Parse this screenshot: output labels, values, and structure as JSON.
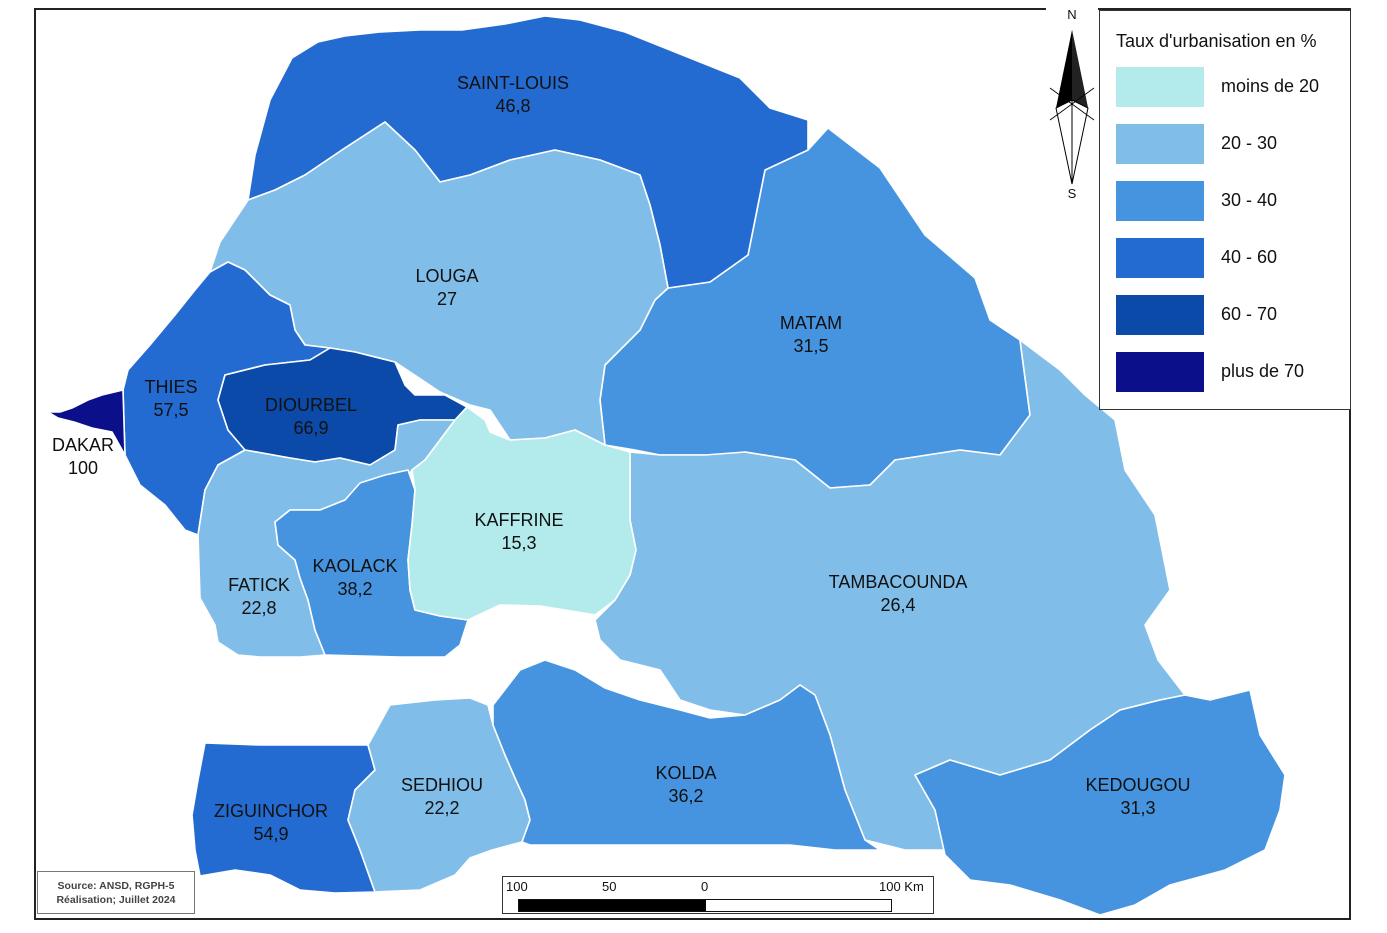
{
  "legend": {
    "title": "Taux d'urbanisation en %",
    "classes": [
      {
        "label": "moins de 20",
        "color": "#b3ebed"
      },
      {
        "label": "20 - 30",
        "color": "#80bde9"
      },
      {
        "label": "30 - 40",
        "color": "#4694e0"
      },
      {
        "label": "40 - 60",
        "color": "#236bd0"
      },
      {
        "label": "60 - 70",
        "color": "#0b4aa8"
      },
      {
        "label": "plus de 70",
        "color": "#0b0f8a"
      }
    ]
  },
  "regions": [
    {
      "name": "SAINT-LOUIS",
      "value": "46,8",
      "class": 3
    },
    {
      "name": "LOUGA",
      "value": "27",
      "class": 1
    },
    {
      "name": "MATAM",
      "value": "31,5",
      "class": 2
    },
    {
      "name": "THIES",
      "value": "57,5",
      "class": 3
    },
    {
      "name": "DIOURBEL",
      "value": "66,9",
      "class": 4
    },
    {
      "name": "DAKAR",
      "value": "100",
      "class": 5
    },
    {
      "name": "KAFFRINE",
      "value": "15,3",
      "class": 0
    },
    {
      "name": "FATICK",
      "value": "22,8",
      "class": 1
    },
    {
      "name": "KAOLACK",
      "value": "38,2",
      "class": 2
    },
    {
      "name": "TAMBACOUNDA",
      "value": "26,4",
      "class": 1
    },
    {
      "name": "SEDHIOU",
      "value": "22,2",
      "class": 1
    },
    {
      "name": "KOLDA",
      "value": "36,2",
      "class": 2
    },
    {
      "name": "ZIGUINCHOR",
      "value": "54,9",
      "class": 3
    },
    {
      "name": "KEDOUGOU",
      "value": "31,3",
      "class": 2
    }
  ],
  "north_arrow": {
    "north": "N",
    "south": "S"
  },
  "source": {
    "line1": "Source: ANSD, RGPH-5",
    "line2": "Réalisation; Juillet 2024"
  },
  "scalebar": {
    "ticks": [
      "100",
      "50",
      "0",
      "100 Km"
    ]
  }
}
